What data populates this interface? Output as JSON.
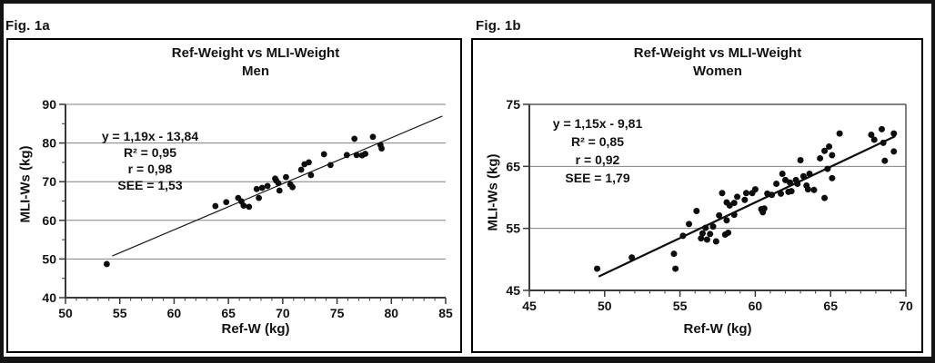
{
  "panels": [
    {
      "fig_label": "Fig. 1a"
    },
    {
      "fig_label": "Fig. 1b"
    }
  ],
  "chart_data": [
    {
      "type": "scatter",
      "title": "Ref-Weight vs MLI-Weight",
      "subtitle": "Men",
      "xlabel": "Ref-W (kg)",
      "ylabel": "MLI-Ws (kg)",
      "xlim": [
        50,
        85
      ],
      "ylim": [
        40,
        90
      ],
      "x_ticks": [
        50,
        55,
        60,
        65,
        70,
        75,
        80,
        85
      ],
      "x_minor_step": 1,
      "y_ticks": [
        40,
        50,
        60,
        70,
        80,
        90
      ],
      "y_minor_step": 5,
      "gridlines_y": [
        50,
        60,
        70,
        80,
        90
      ],
      "boxed": false,
      "grid_color": "#818181",
      "axis_color": "#3a3a3a",
      "point_color": "#0d0d0d",
      "point_radius": 3.4,
      "annotation": [
        "y = 1,19x - 13,84",
        "R² = 0,95",
        "r = 0,98",
        "SEE = 1,53"
      ],
      "trendline": {
        "slope": 1.19,
        "intercept": -13.84,
        "x_start": 54.3,
        "x_end": 84.7,
        "stroke_width": 1.2,
        "color": "#1a1a1a"
      },
      "points": [
        [
          53.8,
          48.7
        ],
        [
          63.8,
          63.7
        ],
        [
          64.8,
          64.7
        ],
        [
          65.9,
          65.8
        ],
        [
          66.2,
          64.9
        ],
        [
          66.4,
          63.8
        ],
        [
          66.9,
          63.5
        ],
        [
          67.6,
          68.1
        ],
        [
          67.8,
          65.8
        ],
        [
          68.1,
          68.4
        ],
        [
          68.6,
          68.9
        ],
        [
          69.3,
          70.8
        ],
        [
          69.4,
          70.3
        ],
        [
          69.6,
          69.6
        ],
        [
          69.7,
          67.7
        ],
        [
          70.3,
          71.2
        ],
        [
          70.7,
          69.3
        ],
        [
          70.9,
          68.6
        ],
        [
          71.7,
          73.1
        ],
        [
          72.0,
          74.5
        ],
        [
          72.4,
          75.0
        ],
        [
          72.6,
          71.7
        ],
        [
          73.8,
          77.1
        ],
        [
          74.4,
          74.3
        ],
        [
          75.9,
          76.9
        ],
        [
          76.6,
          81.1
        ],
        [
          76.8,
          76.9
        ],
        [
          77.3,
          76.8
        ],
        [
          77.6,
          77.2
        ],
        [
          78.3,
          81.6
        ],
        [
          79.0,
          79.5
        ],
        [
          79.1,
          78.6
        ]
      ]
    },
    {
      "type": "scatter",
      "title": "Ref-Weight vs MLI-Weight",
      "subtitle": "Women",
      "xlabel": "Ref-W (kg)",
      "ylabel": "MLI-Ws (kg)",
      "xlim": [
        45,
        70
      ],
      "ylim": [
        45,
        75
      ],
      "x_ticks": [
        45,
        50,
        55,
        60,
        65,
        70
      ],
      "x_minor_step": 1,
      "y_ticks": [
        45,
        55,
        65,
        75
      ],
      "y_minor_step": null,
      "gridlines_y": [
        55,
        65
      ],
      "boxed": true,
      "grid_color": "#818181",
      "axis_color": "#3a3a3a",
      "point_color": "#0d0d0d",
      "point_radius": 3.5,
      "annotation": [
        "y = 1,15x - 9,81",
        "R² = 0,85",
        "r = 0,92",
        "SEE = 1,79"
      ],
      "trendline": {
        "slope": 1.15,
        "intercept": -9.81,
        "x_start": 49.6,
        "x_end": 69.3,
        "stroke_width": 2.2,
        "color": "#0d0d0d"
      },
      "points": [
        [
          49.5,
          48.5
        ],
        [
          51.8,
          50.3
        ],
        [
          54.6,
          50.9
        ],
        [
          54.7,
          48.5
        ],
        [
          55.2,
          53.8
        ],
        [
          55.6,
          55.7
        ],
        [
          56.1,
          57.8
        ],
        [
          56.4,
          53.4
        ],
        [
          56.5,
          54.2
        ],
        [
          56.7,
          55.1
        ],
        [
          56.8,
          53.2
        ],
        [
          57.0,
          54.1
        ],
        [
          57.2,
          55.3
        ],
        [
          57.4,
          52.9
        ],
        [
          57.6,
          57.1
        ],
        [
          57.8,
          60.7
        ],
        [
          58.0,
          54.0
        ],
        [
          58.1,
          56.3
        ],
        [
          58.1,
          59.2
        ],
        [
          58.2,
          54.3
        ],
        [
          58.3,
          58.7
        ],
        [
          58.6,
          57.2
        ],
        [
          58.6,
          59.1
        ],
        [
          58.8,
          60.1
        ],
        [
          59.3,
          59.6
        ],
        [
          59.4,
          60.7
        ],
        [
          59.8,
          60.7
        ],
        [
          60.0,
          61.3
        ],
        [
          60.4,
          58.1
        ],
        [
          60.5,
          57.6
        ],
        [
          60.6,
          58.2
        ],
        [
          60.8,
          60.6
        ],
        [
          61.1,
          60.4
        ],
        [
          61.4,
          62.2
        ],
        [
          61.7,
          60.6
        ],
        [
          61.8,
          63.8
        ],
        [
          62.0,
          62.8
        ],
        [
          62.2,
          60.9
        ],
        [
          62.3,
          62.4
        ],
        [
          62.4,
          61.0
        ],
        [
          62.7,
          62.8
        ],
        [
          62.8,
          62.2
        ],
        [
          63.0,
          66.0
        ],
        [
          63.2,
          63.4
        ],
        [
          63.4,
          61.9
        ],
        [
          63.5,
          61.3
        ],
        [
          63.6,
          63.8
        ],
        [
          63.9,
          61.2
        ],
        [
          64.3,
          66.3
        ],
        [
          64.6,
          59.9
        ],
        [
          64.6,
          67.5
        ],
        [
          64.8,
          64.6
        ],
        [
          64.9,
          68.2
        ],
        [
          65.1,
          63.1
        ],
        [
          65.1,
          66.8
        ],
        [
          65.6,
          70.3
        ],
        [
          67.7,
          70.1
        ],
        [
          67.9,
          69.3
        ],
        [
          68.4,
          71.0
        ],
        [
          68.5,
          68.8
        ],
        [
          68.6,
          65.9
        ],
        [
          69.2,
          67.4
        ],
        [
          69.2,
          70.3
        ]
      ]
    }
  ]
}
